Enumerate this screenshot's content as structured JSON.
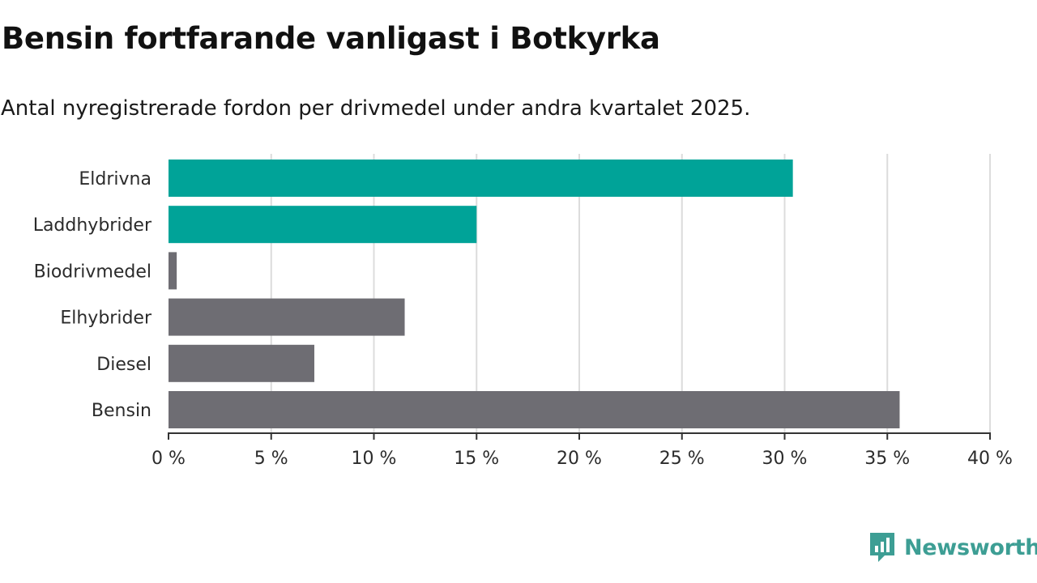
{
  "title": "Bensin fortfarande vanligast i Botkyrka",
  "subtitle": "Antal nyregistrerade fordon per drivmedel under andra kvartalet 2025.",
  "brand": {
    "name": "Newsworthy",
    "icon": "newsworthy-logo-icon",
    "color": "#3d9e94"
  },
  "chart_data": {
    "type": "bar",
    "orientation": "horizontal",
    "categories": [
      "Eldrivna",
      "Laddhybrider",
      "Biodrivmedel",
      "Elhybrider",
      "Diesel",
      "Bensin"
    ],
    "values": [
      30.4,
      15.0,
      0.4,
      11.5,
      7.1,
      35.6
    ],
    "colors": [
      "#00a398",
      "#00a398",
      "#6e6d73",
      "#6e6d73",
      "#6e6d73",
      "#6e6d73"
    ],
    "xlim": [
      0,
      40
    ],
    "xticks": [
      0,
      5,
      10,
      15,
      20,
      25,
      30,
      35,
      40
    ],
    "xtick_labels": [
      "0 %",
      "5 %",
      "10 %",
      "15 %",
      "20 %",
      "25 %",
      "30 %",
      "35 %",
      "40 %"
    ],
    "grid": "vertical",
    "xlabel": "",
    "ylabel": ""
  }
}
